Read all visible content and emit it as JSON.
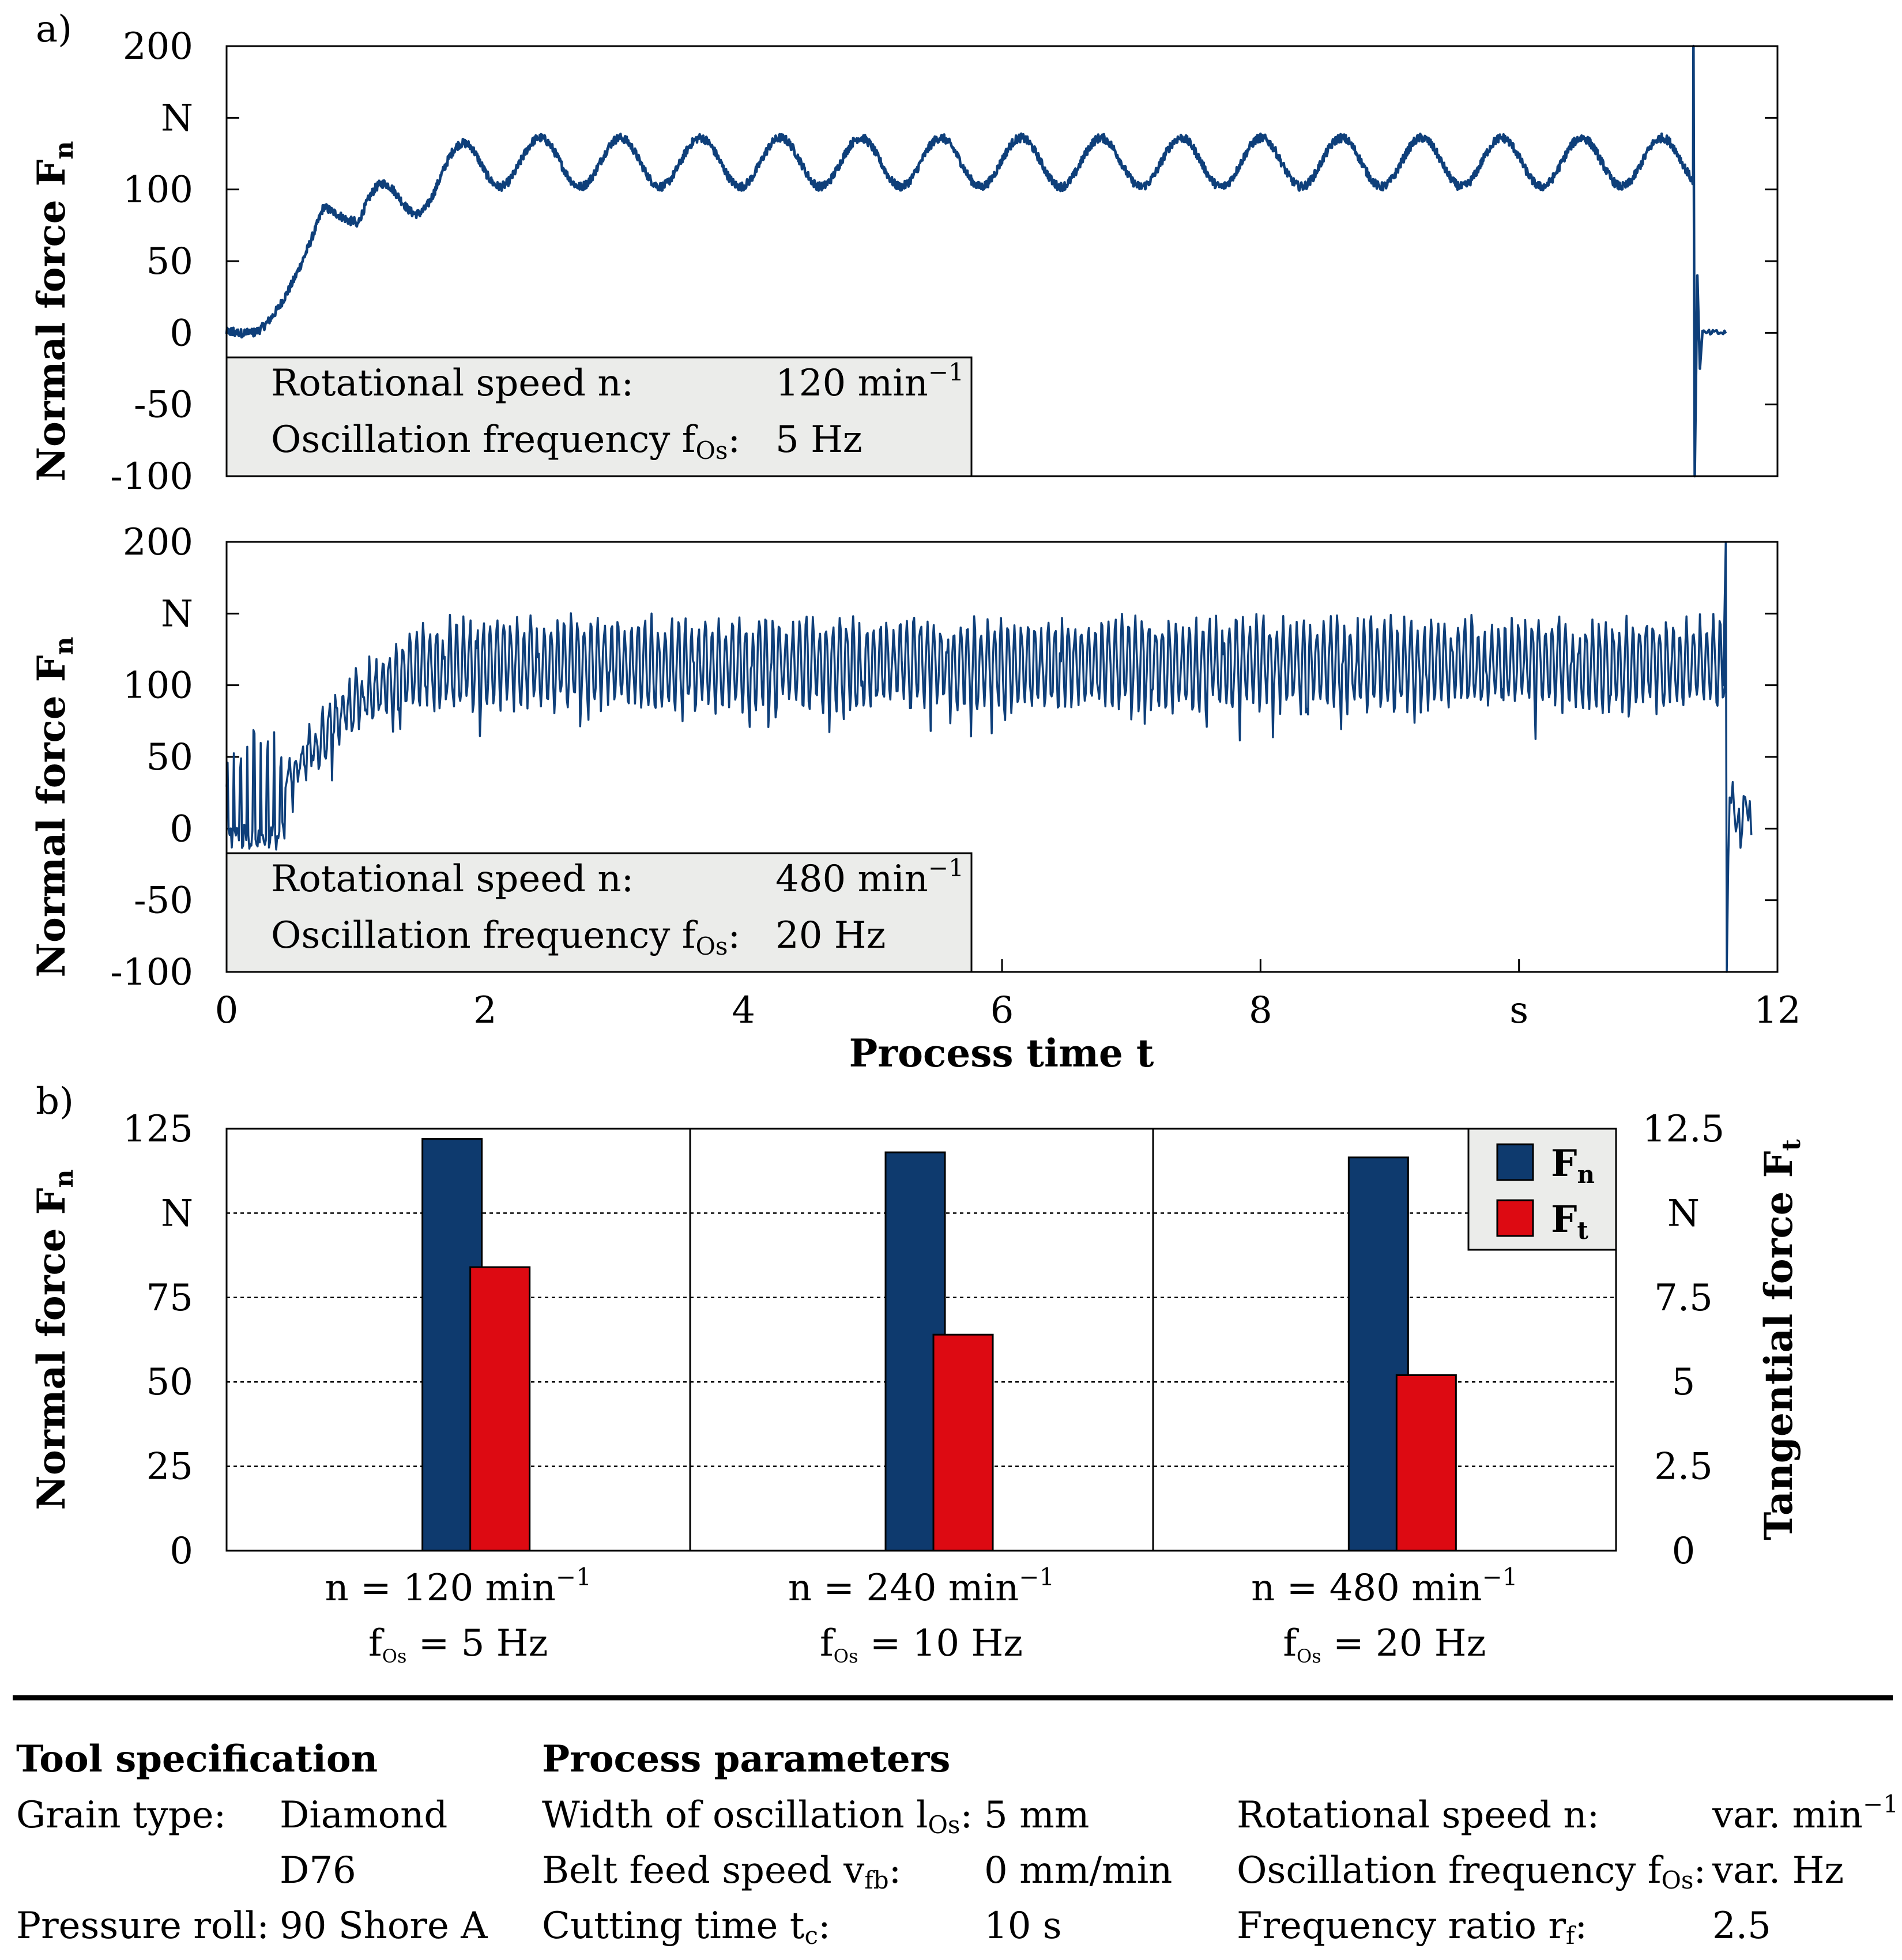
{
  "panel_labels": {
    "a": "a)",
    "b": "b)"
  },
  "chart_data": [
    {
      "id": "top",
      "type": "line",
      "ylabel_main": "Normal force F",
      "ylabel_sub": "n",
      "ylim": [
        -100,
        200
      ],
      "yticks": [
        "200",
        "N",
        "100",
        "50",
        "0",
        "-50",
        "-100"
      ],
      "xlim": [
        0,
        12
      ],
      "color": "#0e3f7a",
      "params": {
        "start": 0.0,
        "ramp_end": 0.75,
        "ramp_level": 88,
        "dip_time": 0.95,
        "dip_level": 78,
        "mean": 119,
        "amplitude": 17,
        "osc_period": 0.62,
        "osc_start": 1.0,
        "end": 11.35,
        "spike_time": 11.35,
        "tail_end": 11.6,
        "noise": 3
      },
      "legend_box": {
        "rows": [
          {
            "label_main": "Rotational speed n:",
            "label_sub": "",
            "label_after": "",
            "value_main": "120 min",
            "value_sup": "−1"
          },
          {
            "label_main": "Oscillation frequency f",
            "label_sub": "Os",
            "label_after": ":",
            "value_main": "5 Hz",
            "value_sup": ""
          }
        ]
      }
    },
    {
      "id": "middle",
      "type": "line",
      "ylabel_main": "Normal force F",
      "ylabel_sub": "n",
      "ylim": [
        -100,
        200
      ],
      "yticks": [
        "200",
        "N",
        "100",
        "50",
        "0",
        "-50",
        "-100"
      ],
      "xlim": [
        0,
        12
      ],
      "xticks": [
        "0",
        "2",
        "4",
        "6",
        "8",
        "s",
        "12"
      ],
      "xlabel": "Process time t",
      "color": "#0e3f7a",
      "params": {
        "start": 0.0,
        "ramp_end": 1.2,
        "mean": 115,
        "amplitude": 28,
        "osc_period": 0.052,
        "end": 11.6,
        "spike_time": 11.6,
        "tail_end": 11.8,
        "noise": 8
      },
      "legend_box": {
        "rows": [
          {
            "label_main": "Rotational speed n:",
            "label_sub": "",
            "label_after": "",
            "value_main": "480 min",
            "value_sup": "−1"
          },
          {
            "label_main": "Oscillation frequency f",
            "label_sub": "Os",
            "label_after": ":",
            "value_main": "20 Hz",
            "value_sup": ""
          }
        ]
      }
    },
    {
      "id": "bottom",
      "type": "bar",
      "ylabel_left_main": "Normal force F",
      "ylabel_left_sub": "n",
      "ylabel_right_main": "Tangential force F",
      "ylabel_right_sub": "t",
      "ylim_left": [
        0,
        125
      ],
      "ylim_right": [
        0,
        12.5
      ],
      "yticks_left": [
        "125",
        "N",
        "75",
        "50",
        "25",
        "0"
      ],
      "yticks_right": [
        "12.5",
        "N",
        "7.5",
        "5",
        "2.5",
        "0"
      ],
      "categories": [
        {
          "line1": "n = 120 min",
          "line1_sup": "−1",
          "line2_pre": "f",
          "line2_sub": "Os",
          "line2_post": " = 5 Hz"
        },
        {
          "line1": "n = 240 min",
          "line1_sup": "−1",
          "line2_pre": "f",
          "line2_sub": "Os",
          "line2_post": " = 10 Hz"
        },
        {
          "line1": "n = 480 min",
          "line1_sup": "−1",
          "line2_pre": "f",
          "line2_sub": "Os",
          "line2_post": " = 20 Hz"
        }
      ],
      "series": [
        {
          "name_main": "F",
          "name_sub": "n",
          "axis": "left",
          "color": "#0e3a6e",
          "values": [
            122,
            118,
            116.5
          ]
        },
        {
          "name_main": "F",
          "name_sub": "t",
          "axis": "right",
          "color": "#dd0a12",
          "values": [
            8.4,
            6.4,
            5.2
          ]
        }
      ]
    }
  ],
  "table": {
    "tool_header": "Tool specification",
    "process_header": "Process parameters",
    "tool_rows": [
      {
        "label": "Grain type:",
        "value": "Diamond"
      },
      {
        "label": "",
        "value": "D76"
      },
      {
        "label": "Pressure roll:",
        "value": "90 Shore A"
      }
    ],
    "process_rows_mid": [
      {
        "label_main": "Width of oscillation l",
        "label_sub": "Os",
        "label_after": ":",
        "value": "5 mm"
      },
      {
        "label_main": "Belt feed speed v",
        "label_sub": "fb",
        "label_after": ":",
        "value": "0 mm/min"
      },
      {
        "label_main": "Cutting time t",
        "label_sub": "c",
        "label_after": ":",
        "value": "10 s"
      }
    ],
    "process_rows_right": [
      {
        "label_main": "Rotational speed n:",
        "label_sub": "",
        "label_after": "",
        "value_main": "var. min",
        "value_sup": "−1"
      },
      {
        "label_main": "Oscillation frequency f",
        "label_sub": "Os",
        "label_after": ":",
        "value_main": "var. Hz",
        "value_sup": ""
      },
      {
        "label_main": "Frequency ratio  r",
        "label_sub": "f",
        "label_after": ":",
        "value_main": "2.5",
        "value_sup": ""
      }
    ]
  }
}
